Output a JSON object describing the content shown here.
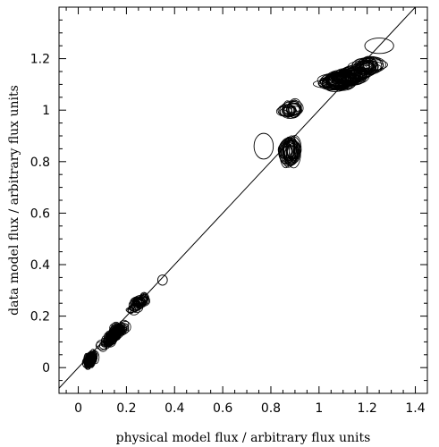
{
  "chart_data": {
    "type": "scatter",
    "marker": "ellipse",
    "xlabel": "physical model flux / arbitrary flux units",
    "ylabel": "data model flux / arbitrary flux units",
    "xlim": [
      -0.08,
      1.45
    ],
    "ylim": [
      -0.1,
      1.4
    ],
    "xticks": [
      0,
      0.2,
      0.4,
      0.6,
      0.8,
      1,
      1.2,
      1.4
    ],
    "yticks": [
      0,
      0.2,
      0.4,
      0.6,
      0.8,
      1,
      1.2
    ],
    "xtick_labels": [
      "0",
      "0.2",
      "0.4",
      "0.6",
      "0.8",
      "1",
      "1.2",
      "1.4"
    ],
    "ytick_labels": [
      "0",
      "0.2",
      "0.4",
      "0.6",
      "0.8",
      "1",
      "1.2"
    ],
    "reference_line": {
      "slope": 1,
      "intercept": 0
    },
    "grid": false,
    "clusters": [
      {
        "center": [
          0.05,
          0.03
        ],
        "spread": [
          0.025,
          0.035
        ],
        "radius": [
          0.012,
          0.02
        ],
        "count": 90,
        "tilt": 0.6
      },
      {
        "center": [
          0.15,
          0.13
        ],
        "spread": [
          0.06,
          0.06
        ],
        "radius": [
          0.018,
          0.016
        ],
        "count": 110,
        "tilt": 0.9
      },
      {
        "center": [
          0.25,
          0.25
        ],
        "spread": [
          0.05,
          0.05
        ],
        "radius": [
          0.02,
          0.016
        ],
        "count": 40,
        "tilt": 0.9
      },
      {
        "center": [
          0.88,
          0.84
        ],
        "spread": [
          0.03,
          0.05
        ],
        "radius": [
          0.03,
          0.04
        ],
        "count": 30,
        "tilt": 0.3
      },
      {
        "center": [
          0.88,
          1.0
        ],
        "spread": [
          0.04,
          0.03
        ],
        "radius": [
          0.03,
          0.025
        ],
        "count": 20,
        "tilt": 0.2
      },
      {
        "center": [
          1.1,
          1.12
        ],
        "spread": [
          0.09,
          0.04
        ],
        "radius": [
          0.05,
          0.025
        ],
        "count": 80,
        "tilt": 0.35
      },
      {
        "center": [
          1.2,
          1.17
        ],
        "spread": [
          0.05,
          0.03
        ],
        "radius": [
          0.04,
          0.025
        ],
        "count": 30,
        "tilt": 0.2
      }
    ],
    "highlighted_points": [
      {
        "x": 0.77,
        "y": 0.86,
        "rx": 0.04,
        "ry": 0.05
      },
      {
        "x": 0.35,
        "y": 0.34,
        "rx": 0.02,
        "ry": 0.02
      },
      {
        "x": 1.25,
        "y": 1.25,
        "rx": 0.06,
        "ry": 0.03
      }
    ]
  }
}
